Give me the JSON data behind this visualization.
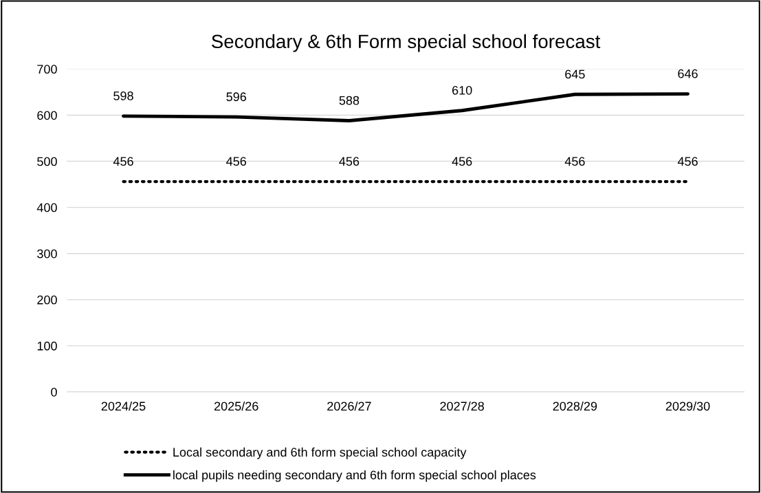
{
  "chart_data": {
    "type": "line",
    "title": "Secondary & 6th Form special school forecast",
    "categories": [
      "2024/25",
      "2025/26",
      "2026/27",
      "2027/28",
      "2028/29",
      "2029/30"
    ],
    "series": [
      {
        "name": "Local secondary and 6th form special school capacity",
        "color": "#000000",
        "line_style": "dotted",
        "values": [
          456,
          456,
          456,
          456,
          456,
          456
        ]
      },
      {
        "name": "local pupils needing secondary and 6th form special school places",
        "color": "#000000",
        "line_style": "solid",
        "values": [
          598,
          596,
          588,
          610,
          645,
          646
        ]
      }
    ],
    "ylim": [
      0,
      700
    ],
    "yticks": [
      0,
      100,
      200,
      300,
      400,
      500,
      600,
      700
    ],
    "grid": "y",
    "legend": "bottom",
    "data_labels": true,
    "marker": "none"
  }
}
